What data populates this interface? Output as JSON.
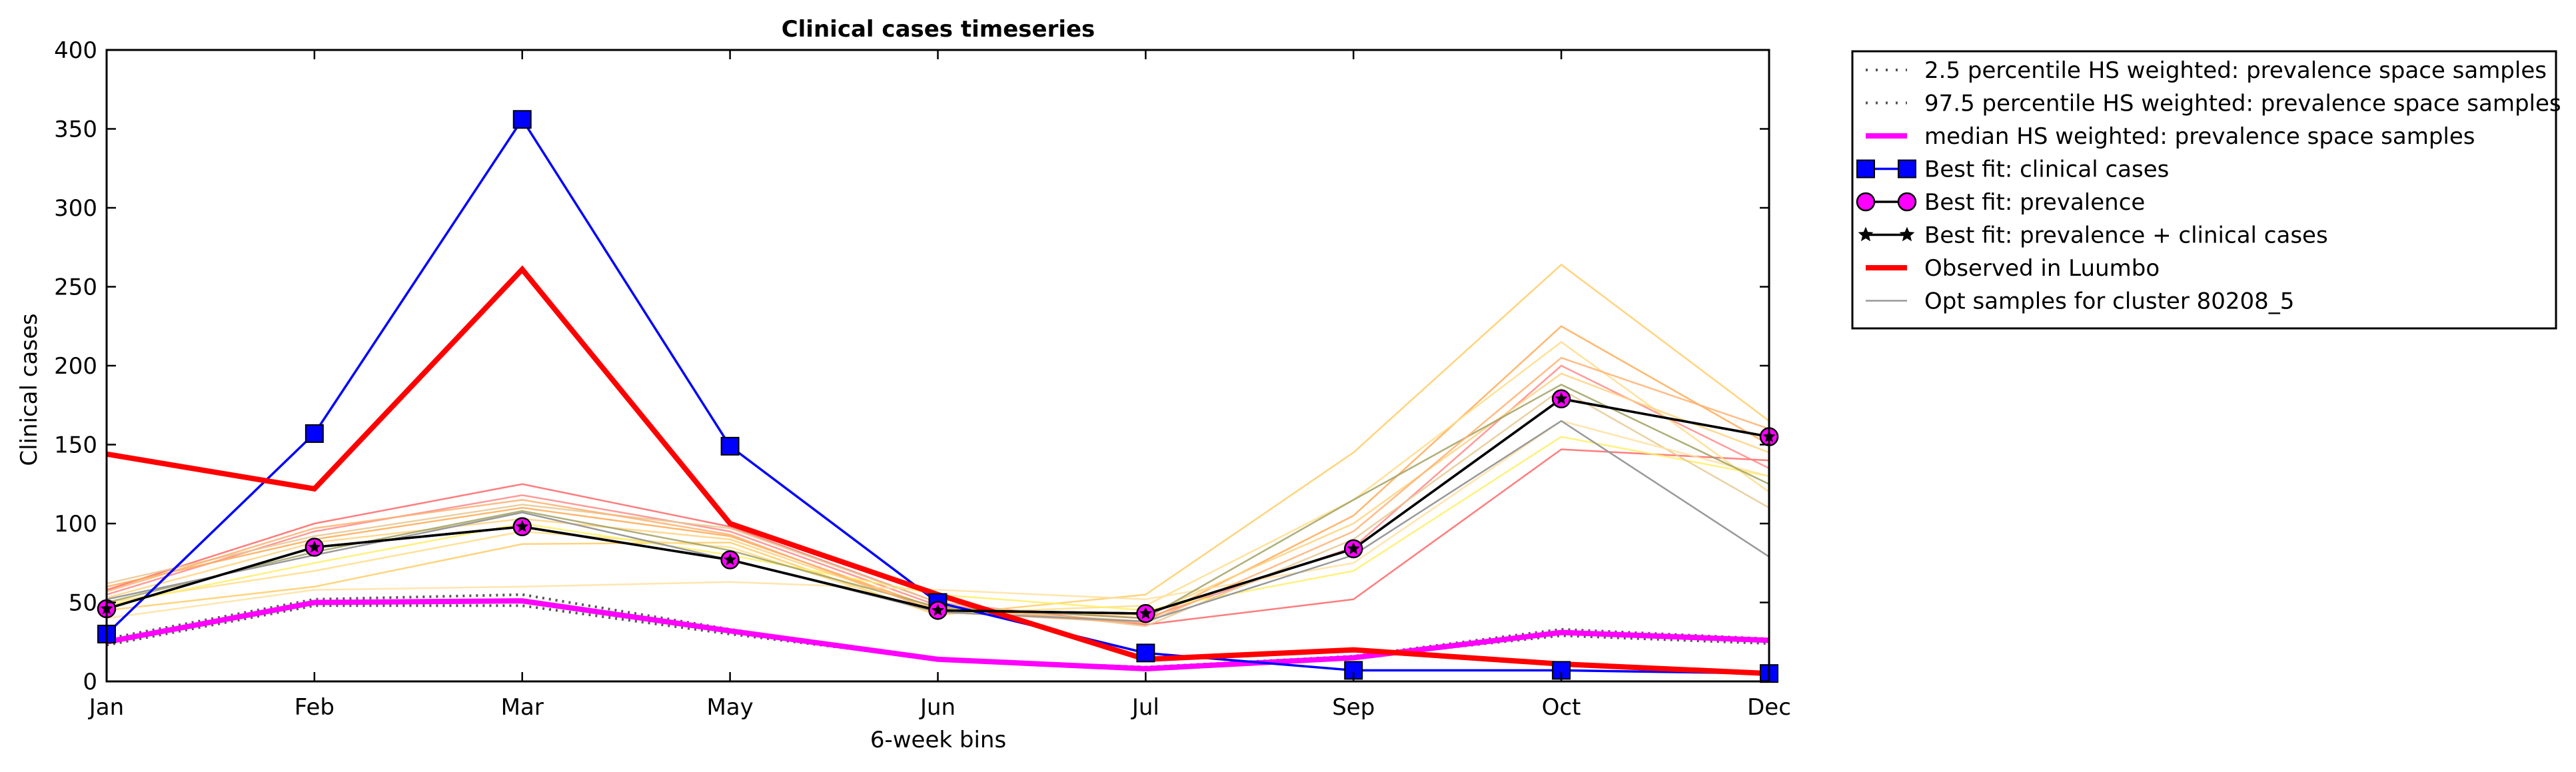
{
  "chart_data": {
    "type": "line",
    "title": "Clinical cases timeseries",
    "xlabel": "6-week bins",
    "ylabel": "Clinical cases",
    "categories": [
      "Jan",
      "Feb",
      "Mar",
      "May",
      "Jun",
      "Jul",
      "Sep",
      "Oct",
      "Dec"
    ],
    "ylim": [
      0,
      400
    ],
    "yticks": [
      0,
      50,
      100,
      150,
      200,
      250,
      300,
      350,
      400
    ],
    "grid": false,
    "legend_placement": "outside-top-right",
    "series": [
      {
        "name": "2.5 percentile HS weighted: prevalence space samples",
        "color": "#555555",
        "style": "dotted",
        "values": [
          23,
          48,
          48,
          30,
          14,
          9,
          15,
          29,
          24
        ]
      },
      {
        "name": "97.5 percentile HS weighted: prevalence space samples",
        "color": "#555555",
        "style": "dotted",
        "values": [
          27,
          52,
          55,
          33,
          14,
          9,
          16,
          33,
          27
        ]
      },
      {
        "name": "median HS weighted: prevalence space samples",
        "color": "#ff00ff",
        "style": "solid",
        "values": [
          25,
          50,
          51,
          32,
          14,
          8,
          15,
          31,
          26
        ]
      },
      {
        "name": "Best fit: clinical cases",
        "color": "#0000ff",
        "style": "solid",
        "marker": "square",
        "values": [
          30,
          157,
          356,
          149,
          50,
          18,
          7,
          7,
          5
        ]
      },
      {
        "name": "Best fit: prevalence",
        "color": "#000000",
        "style": "solid",
        "marker": "circle",
        "values": [
          46,
          85,
          98,
          77,
          45,
          43,
          84,
          179,
          155
        ]
      },
      {
        "name": "Best fit: prevalence + clinical cases",
        "color": "#000000",
        "style": "solid",
        "marker": "star",
        "values": [
          46,
          85,
          98,
          77,
          45,
          43,
          84,
          179,
          155
        ]
      },
      {
        "name": "Observed in Luumbo",
        "color": "#ff0000",
        "style": "solid",
        "values": [
          144,
          122,
          261,
          100,
          55,
          14,
          20,
          11,
          5
        ]
      },
      {
        "name": "Opt samples for cluster 80208_5",
        "color": "#999999",
        "style": "thin",
        "values": [
          52,
          80,
          107,
          77,
          44,
          38,
          80,
          165,
          79
        ]
      }
    ],
    "background_samples": [
      {
        "color": "#ff6666",
        "values": [
          58,
          100,
          125,
          98,
          50,
          36,
          52,
          147,
          140
        ]
      },
      {
        "color": "#ff8888",
        "values": [
          55,
          95,
          118,
          95,
          48,
          40,
          85,
          200,
          135
        ]
      },
      {
        "color": "#ffaa55",
        "values": [
          60,
          90,
          110,
          92,
          46,
          38,
          105,
          225,
          150
        ]
      },
      {
        "color": "#ffcc66",
        "values": [
          45,
          60,
          87,
          88,
          42,
          55,
          145,
          264,
          165
        ]
      },
      {
        "color": "#ffdd88",
        "values": [
          50,
          70,
          95,
          85,
          43,
          48,
          115,
          215,
          120
        ]
      },
      {
        "color": "#ffee66",
        "values": [
          48,
          75,
          100,
          80,
          55,
          45,
          70,
          155,
          130
        ]
      },
      {
        "color": "#ffd27f",
        "values": [
          53,
          88,
          103,
          90,
          45,
          42,
          100,
          195,
          145
        ]
      },
      {
        "color": "#e6c890",
        "values": [
          62,
          92,
          112,
          97,
          50,
          35,
          90,
          185,
          110
        ]
      },
      {
        "color": "#ffe0a0",
        "values": [
          40,
          58,
          60,
          63,
          58,
          52,
          75,
          165,
          130
        ]
      },
      {
        "color": "#a0a060",
        "values": [
          50,
          82,
          108,
          83,
          47,
          40,
          115,
          188,
          125
        ]
      },
      {
        "color": "#ffb070",
        "values": [
          57,
          97,
          115,
          93,
          44,
          37,
          95,
          205,
          160
        ]
      }
    ]
  }
}
